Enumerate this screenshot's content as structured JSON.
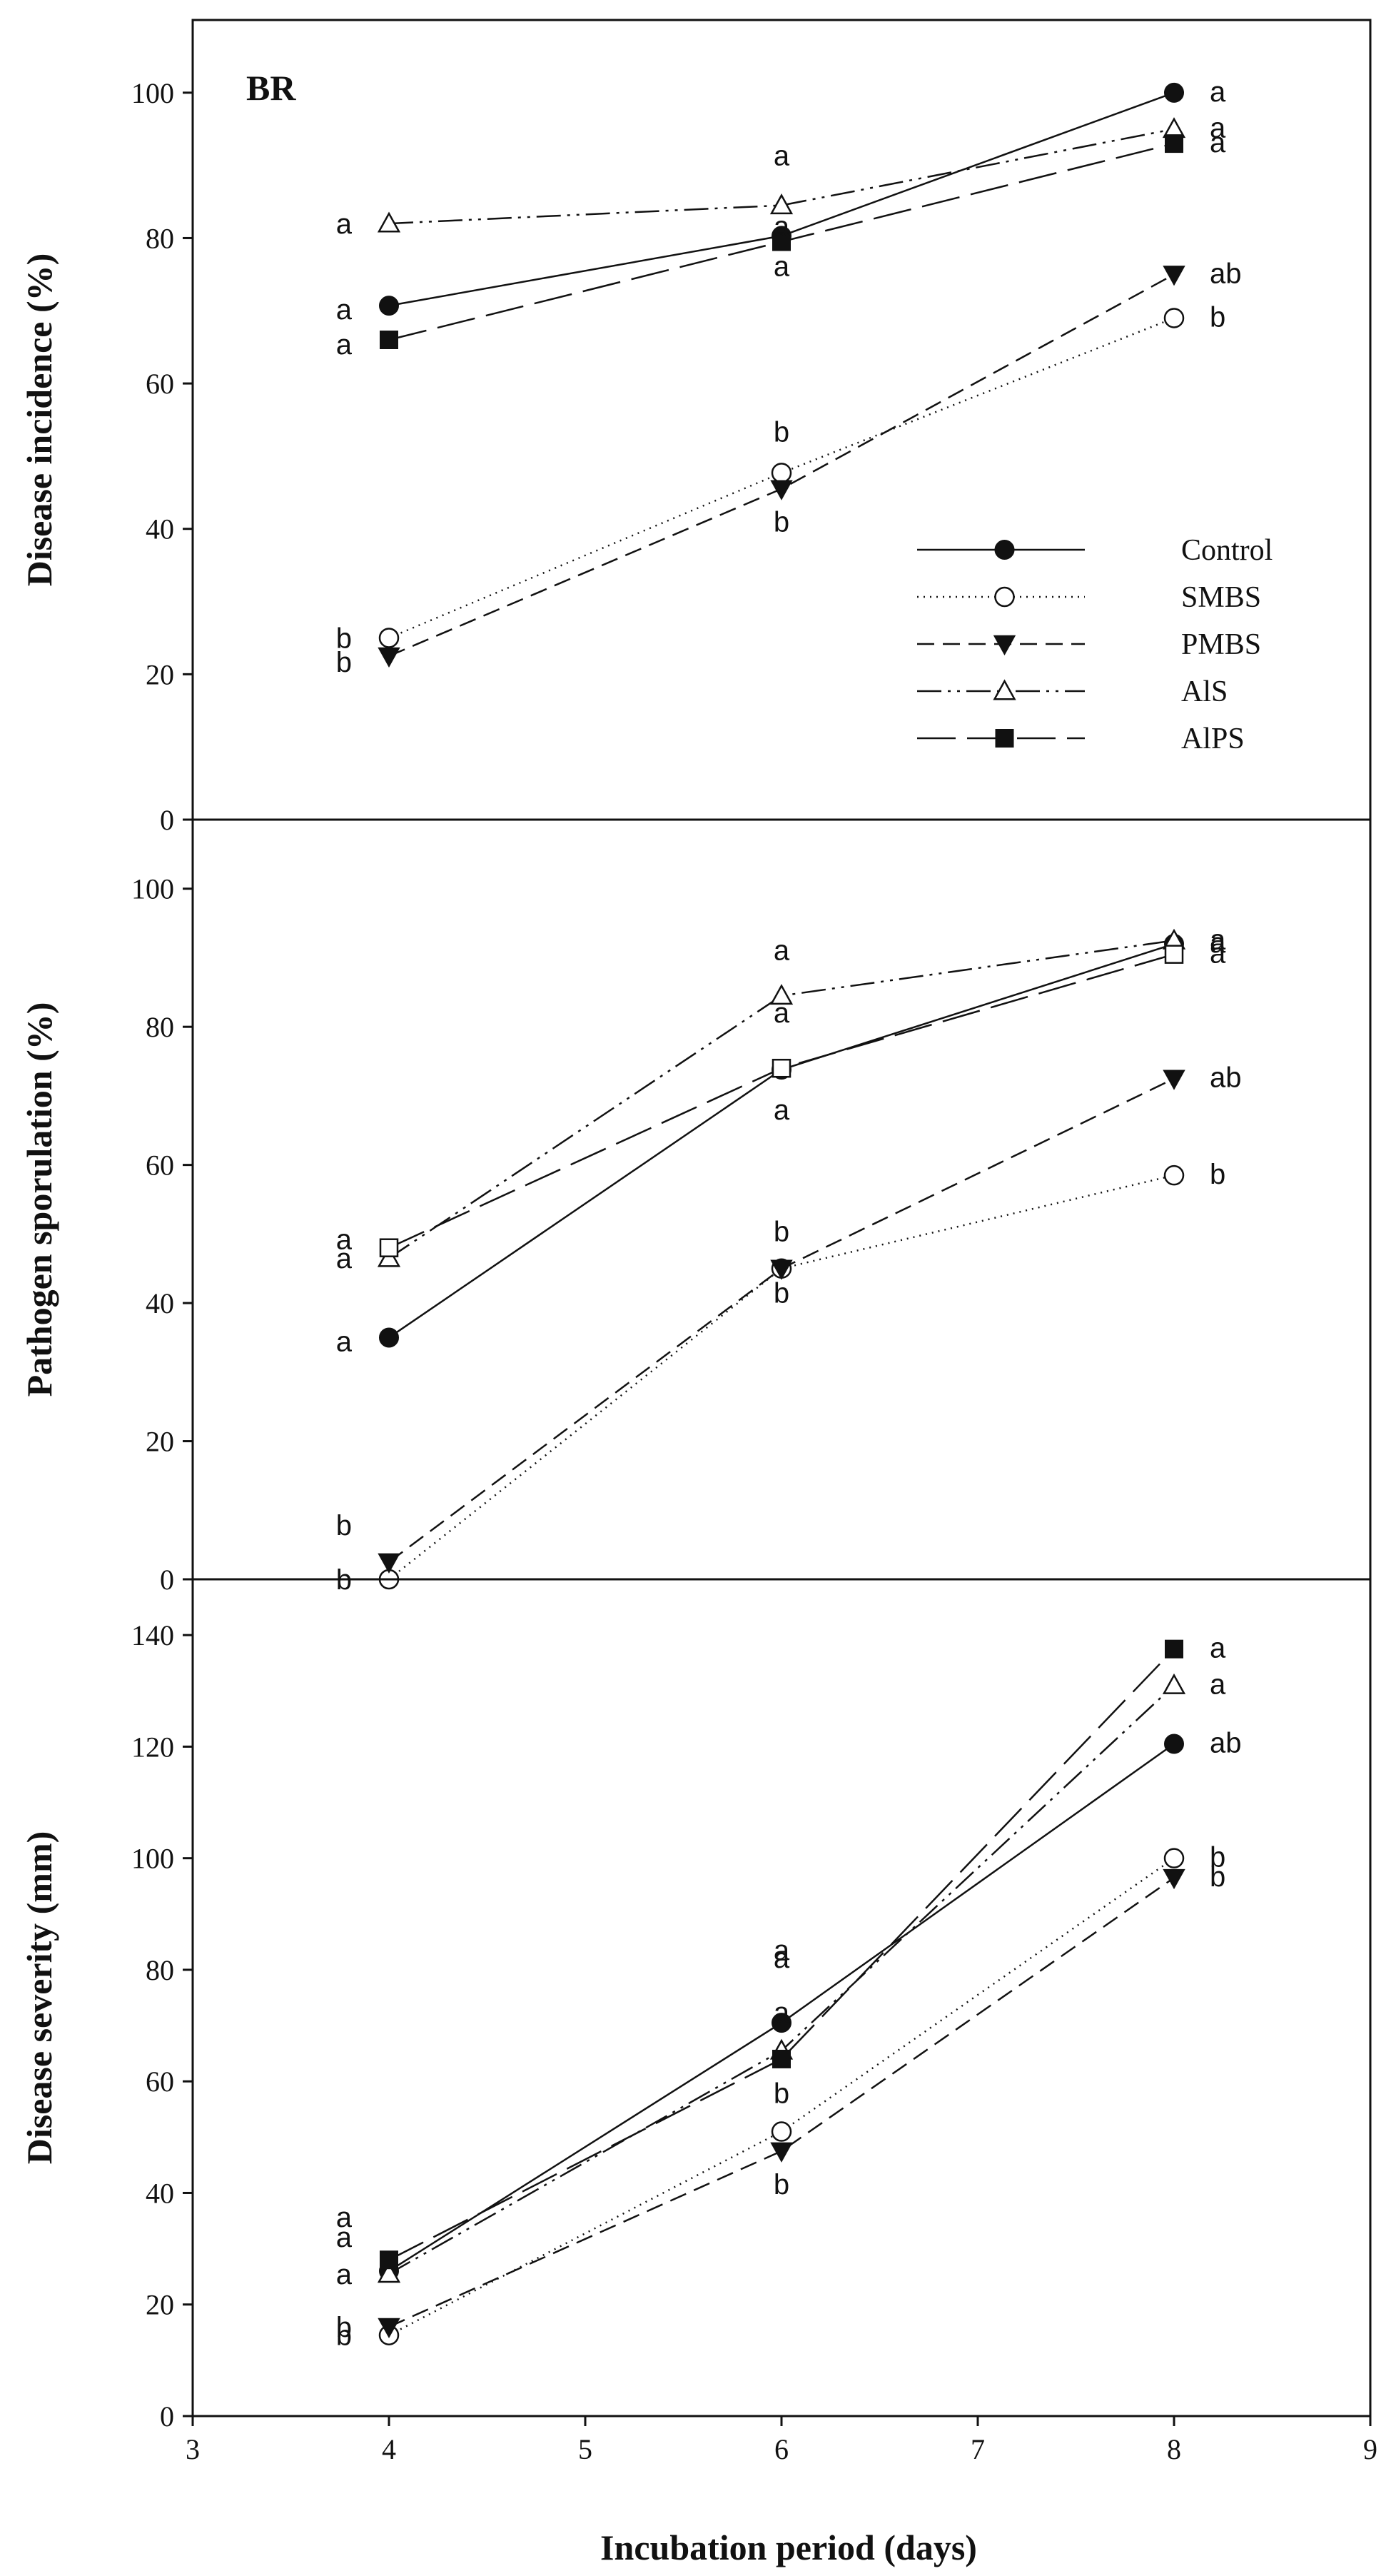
{
  "chart_data": {
    "type": "line",
    "shared_x_axis": {
      "label": "Incubation period (days)",
      "xlim": [
        3,
        9
      ],
      "ticks": [
        3,
        4,
        5,
        6,
        7,
        8,
        9
      ],
      "tick_labels": [
        "3",
        "4",
        "5",
        "6",
        "7",
        "8",
        "9"
      ]
    },
    "x": [
      4,
      6,
      8
    ],
    "legend": {
      "placement": "inside-lower-right-of-top-panel",
      "entries": [
        "Control",
        "SMBS",
        "PMBS",
        "AlS",
        "AlPS"
      ]
    },
    "series_styles": {
      "Control": {
        "marker": "circle-filled",
        "dash": "solid"
      },
      "SMBS": {
        "marker": "circle-open",
        "dash": "dotted"
      },
      "PMBS": {
        "marker": "triangle-down-filled",
        "dash": "dashed"
      },
      "AlS": {
        "marker": "triangle-up-open",
        "dash": "dash-dot-dot"
      },
      "AlPS": {
        "marker": "square-filled",
        "dash": "long-dash"
      }
    },
    "panels": [
      {
        "id": "incidence",
        "panel_tag": "BR",
        "ylabel": "Disease incidence (%)",
        "ylim": [
          0,
          110
        ],
        "yticks": [
          0,
          20,
          40,
          60,
          80,
          100
        ],
        "ytick_labels": [
          "0",
          "20",
          "40",
          "60",
          "80",
          "100"
        ],
        "series": [
          {
            "name": "Control",
            "values": [
              70.7,
              80.3,
              100
            ],
            "letters": [
              "a",
              "a",
              "a"
            ]
          },
          {
            "name": "SMBS",
            "values": [
              25,
              47.7,
              69
            ],
            "letters": [
              "b",
              "b",
              "b"
            ]
          },
          {
            "name": "PMBS",
            "values": [
              22.5,
              45.5,
              75
            ],
            "letters": [
              "b",
              "b",
              "ab"
            ]
          },
          {
            "name": "AlS",
            "values": [
              82,
              84.5,
              95
            ],
            "letters": [
              "a",
              "a",
              "a"
            ]
          },
          {
            "name": "AlPS",
            "values": [
              66,
              79.5,
              93
            ],
            "letters": [
              "a",
              "a",
              "a"
            ]
          }
        ]
      },
      {
        "id": "sporulation",
        "ylabel": "Pathogen sporulation (%)",
        "ylim": [
          0,
          110
        ],
        "yticks": [
          0,
          20,
          40,
          60,
          80,
          100
        ],
        "ytick_labels": [
          "0",
          "20",
          "40",
          "60",
          "80",
          "100"
        ],
        "series": [
          {
            "name": "Control",
            "values": [
              35,
              73.8,
              92
            ],
            "letters": [
              "a",
              "a",
              "a"
            ]
          },
          {
            "name": "SMBS",
            "values": [
              0,
              45,
              58.5
            ],
            "letters": [
              "b",
              "b",
              "b"
            ]
          },
          {
            "name": "PMBS",
            "values": [
              2.5,
              45,
              72.5
            ],
            "letters": [
              "b",
              "b",
              "ab"
            ]
          },
          {
            "name": "AlS",
            "values": [
              46.5,
              84.5,
              92.5
            ],
            "letters": [
              "a",
              "a",
              "a"
            ]
          },
          {
            "name": "AlPS",
            "values": [
              48,
              74,
              90.5
            ],
            "letters": [
              "a",
              "a",
              "a"
            ]
          }
        ]
      },
      {
        "id": "severity",
        "ylabel": "Disease severity (mm)",
        "ylim": [
          0,
          150
        ],
        "yticks": [
          0,
          20,
          40,
          60,
          80,
          100,
          120,
          140
        ],
        "ytick_labels": [
          "0",
          "20",
          "40",
          "60",
          "80",
          "100",
          "120",
          "140"
        ],
        "series": [
          {
            "name": "Control",
            "values": [
              26,
              70.5,
              120.5
            ],
            "letters": [
              "a",
              "a",
              "ab"
            ]
          },
          {
            "name": "SMBS",
            "values": [
              14.5,
              51,
              100
            ],
            "letters": [
              "b",
              "b",
              "b"
            ]
          },
          {
            "name": "PMBS",
            "values": [
              16,
              47.5,
              96.5
            ],
            "letters": [
              "b",
              "b",
              "b"
            ]
          },
          {
            "name": "AlS",
            "values": [
              25.5,
              65.5,
              131
            ],
            "letters": [
              "a",
              "a",
              "a"
            ]
          },
          {
            "name": "AlPS",
            "values": [
              28,
              64,
              137.5
            ],
            "letters": [
              "a",
              "a",
              "a"
            ]
          }
        ]
      }
    ]
  }
}
